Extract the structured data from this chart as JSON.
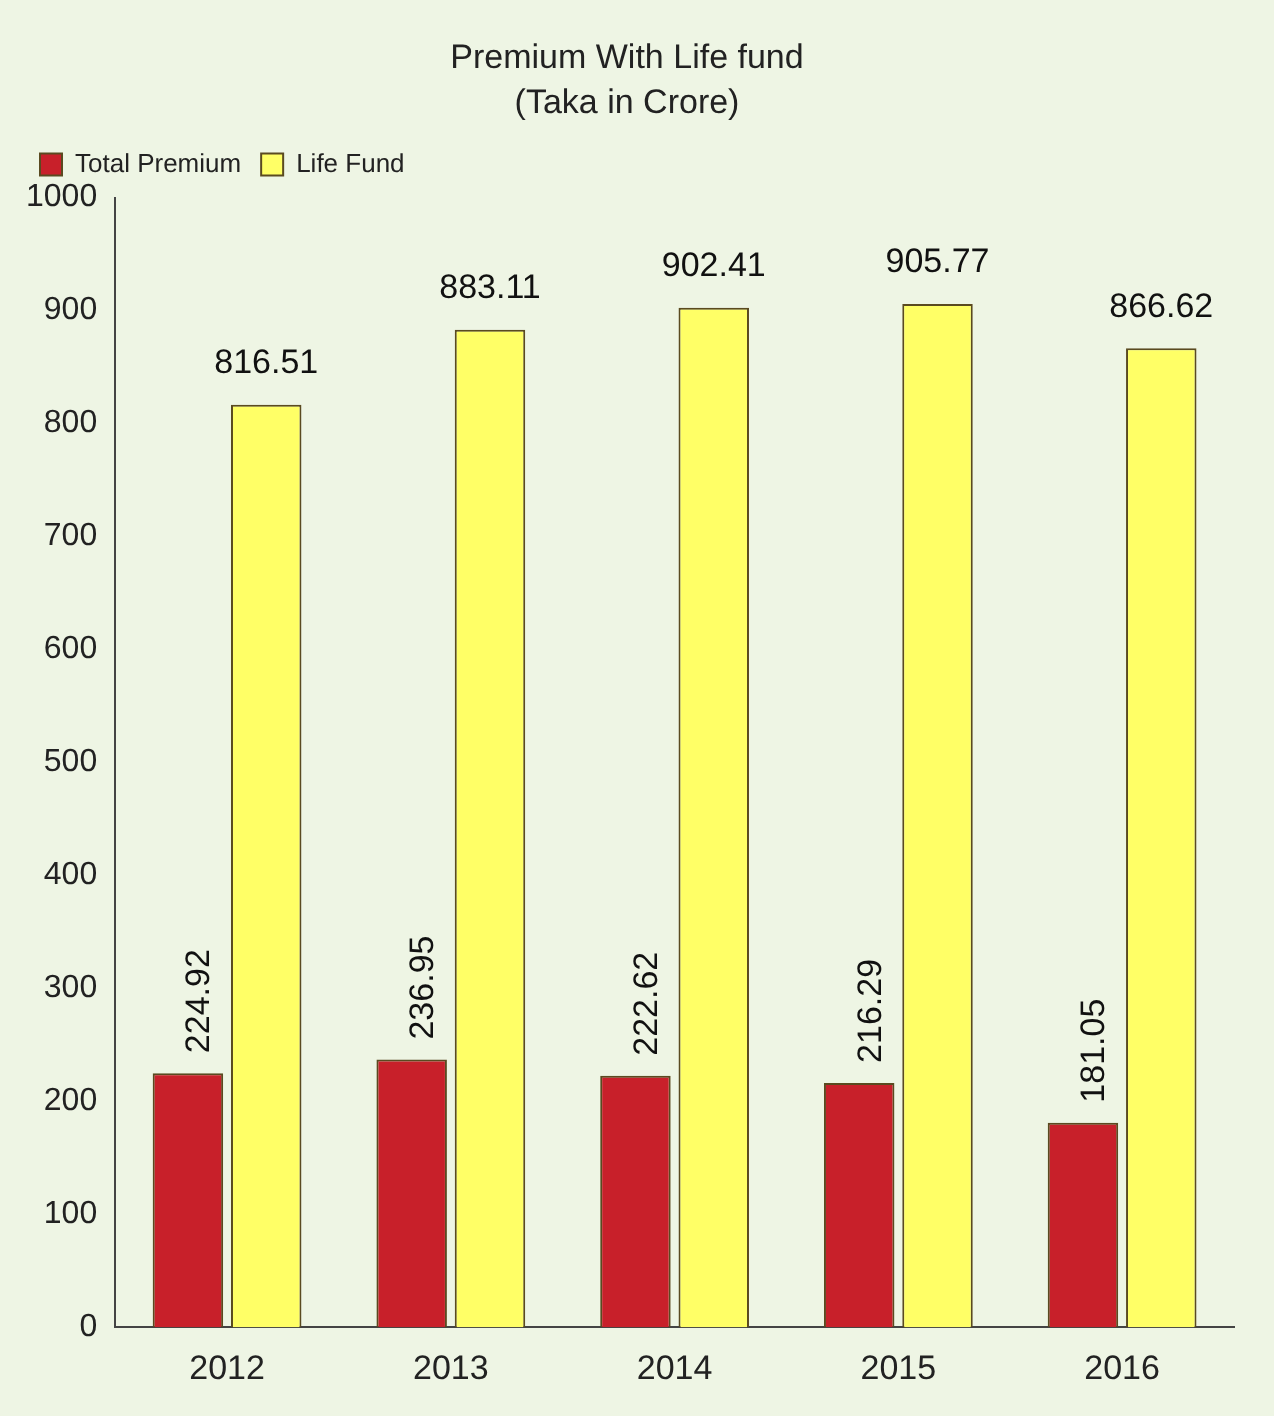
{
  "chart_data": {
    "type": "bar",
    "title": "Premium With Life fund",
    "subtitle": "(Taka in Crore)",
    "categories": [
      "2012",
      "2013",
      "2014",
      "2015",
      "2016"
    ],
    "series": [
      {
        "name": "Total Premium",
        "color": "#c8202a",
        "values": [
          224.92,
          236.95,
          222.62,
          216.29,
          181.05
        ]
      },
      {
        "name": "Life Fund",
        "color": "#ffff66",
        "values": [
          816.51,
          883.11,
          902.41,
          905.77,
          866.62
        ]
      }
    ],
    "ylim": [
      0,
      1000
    ],
    "yticks": [
      0,
      100,
      200,
      300,
      400,
      500,
      600,
      700,
      800,
      900,
      1000
    ],
    "grid": false,
    "legend": "top left",
    "data_labels": true
  }
}
